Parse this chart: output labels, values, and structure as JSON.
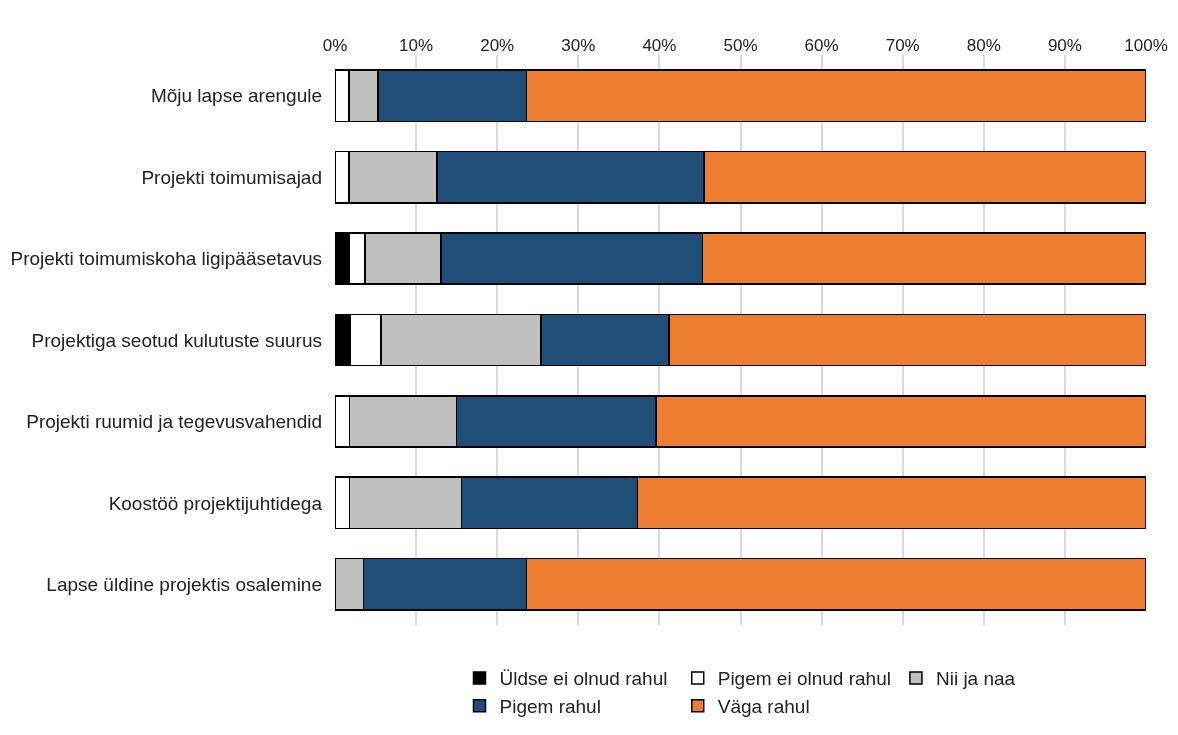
{
  "chart_data": {
    "type": "bar",
    "orientation": "horizontal",
    "stacked": true,
    "categories": [
      "Mõju lapse arengule",
      "Projekti toimumisajad",
      "Projekti toimumiskoha ligipääsetavus",
      "Projektiga seotud kulutuste suurus",
      "Projekti ruumid ja tegevusvahendid",
      "Koostöö projektijuhtidega",
      "Lapse üldine projektis osalemine"
    ],
    "series": [
      {
        "name": "Üldse ei olnud rahul",
        "color": "#000000",
        "values": [
          0,
          0,
          1.8,
          1.9,
          0,
          0,
          0
        ]
      },
      {
        "name": "Pigem ei olnud rahul",
        "color": "#ffffff",
        "values": [
          1.7,
          1.7,
          1.9,
          3.8,
          1.8,
          1.8,
          0
        ]
      },
      {
        "name": "Nii ja naa",
        "color": "#bfbfbf",
        "values": [
          3.6,
          10.9,
          9.4,
          19.7,
          13.2,
          13.8,
          3.5
        ]
      },
      {
        "name": "Pigem rahul",
        "color": "#1f4e79",
        "values": [
          18.3,
          32.9,
          32.2,
          15.8,
          24.6,
          21.7,
          20.1
        ]
      },
      {
        "name": "Väga rahul",
        "color": "#ed7d31",
        "values": [
          76.4,
          54.5,
          54.7,
          58.8,
          60.4,
          62.7,
          76.4
        ]
      }
    ],
    "xlim": [
      0,
      100
    ],
    "xticks": [
      {
        "value": 0,
        "label": "0%"
      },
      {
        "value": 10,
        "label": "10%"
      },
      {
        "value": 20,
        "label": "20%"
      },
      {
        "value": 30,
        "label": "30%"
      },
      {
        "value": 40,
        "label": "40%"
      },
      {
        "value": 50,
        "label": "50%"
      },
      {
        "value": 60,
        "label": "60%"
      },
      {
        "value": 70,
        "label": "70%"
      },
      {
        "value": 80,
        "label": "80%"
      },
      {
        "value": 90,
        "label": "90%"
      },
      {
        "value": 100,
        "label": "100%"
      }
    ],
    "grid": "x",
    "legend": "bottom"
  }
}
